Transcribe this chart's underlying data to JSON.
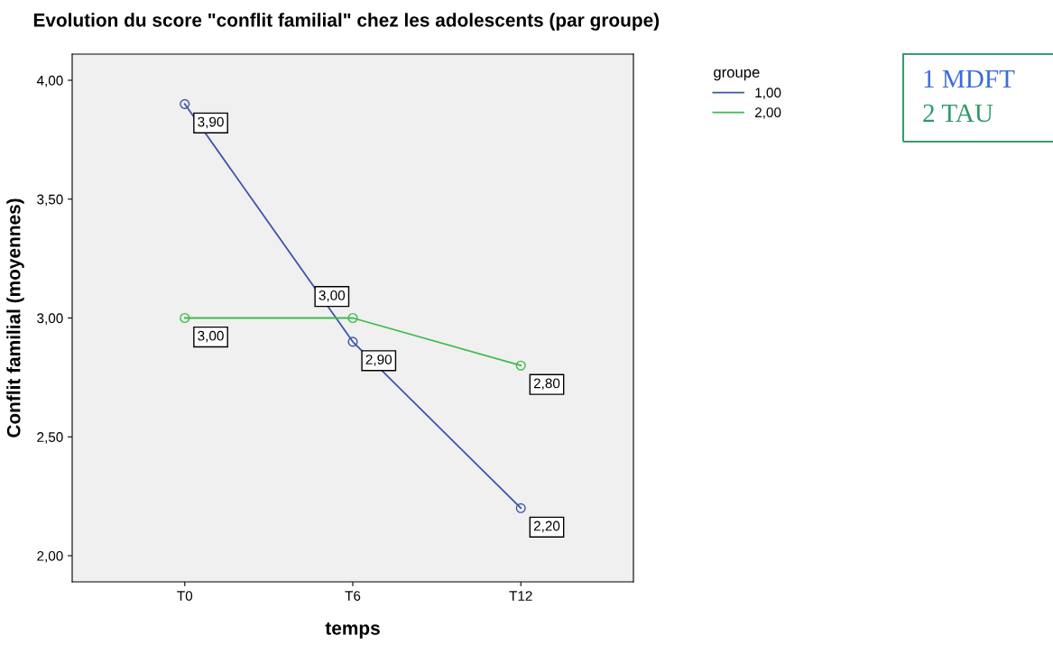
{
  "chart_data": {
    "type": "line",
    "title": "Evolution du score \"conflit familial\" chez les adolescents (par groupe)",
    "xlabel": "temps",
    "ylabel": "Conflit familial (moyennes)",
    "legend_title": "groupe",
    "categories": [
      "T0",
      "T6",
      "T12"
    ],
    "series": [
      {
        "name": "1,00",
        "color": "#3f53ad",
        "values": [
          3.9,
          2.9,
          2.2
        ],
        "value_labels": [
          "3,90",
          "2,90",
          "2,20"
        ]
      },
      {
        "name": "2,00",
        "color": "#3cbb4c",
        "values": [
          3.0,
          3.0,
          2.8
        ],
        "value_labels": [
          "3,00",
          "3,00",
          "2,80"
        ]
      }
    ],
    "ylim": [
      1.89,
      4.11
    ],
    "yticks": [
      {
        "value": 2,
        "label": "2,00"
      },
      {
        "value": 2.5,
        "label": "2,50"
      },
      {
        "value": 3,
        "label": "3,00"
      },
      {
        "value": 3.5,
        "label": "3,50"
      },
      {
        "value": 4,
        "label": "4,00"
      }
    ],
    "grid": false,
    "legend": "top right",
    "marker": "circle",
    "line_style": "solid",
    "annotations": [
      "1 MDFT",
      "2 TAU"
    ]
  }
}
